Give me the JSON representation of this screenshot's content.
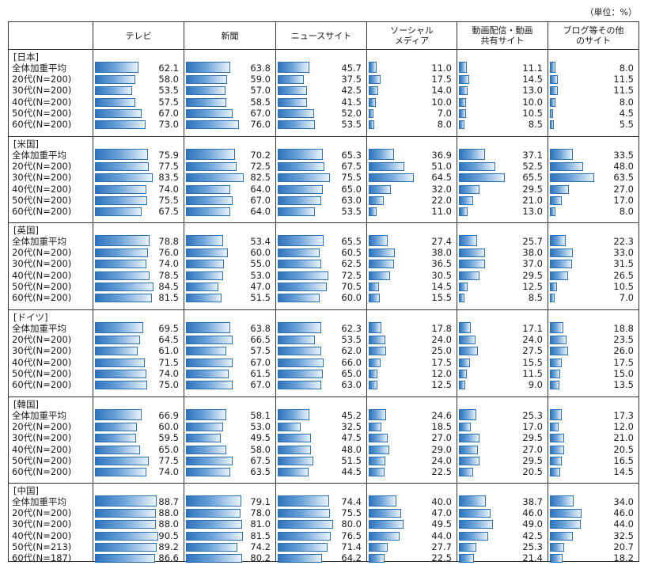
{
  "unit_label": "（単位：%）",
  "chart_data": {
    "type": "bar",
    "unit": "%",
    "columns": [
      "テレビ",
      "新聞",
      "ニュースサイト",
      "ソーシャル\nメディア",
      "動画配信・動画\n共有サイト",
      "ブログ等その他\nのサイト"
    ],
    "groups": [
      {
        "name": "[日本]",
        "rows": [
          {
            "label": "全体加重平均",
            "values": [
              62.1,
              63.8,
              45.7,
              11.0,
              11.1,
              8.0
            ]
          },
          {
            "label": "20代(N=200)",
            "values": [
              58.0,
              59.0,
              37.5,
              17.5,
              14.5,
              11.5
            ]
          },
          {
            "label": "30代(N=200)",
            "values": [
              53.5,
              57.0,
              42.5,
              14.0,
              13.0,
              11.5
            ]
          },
          {
            "label": "40代(N=200)",
            "values": [
              57.5,
              58.5,
              41.5,
              10.0,
              10.0,
              8.0
            ]
          },
          {
            "label": "50代(N=200)",
            "values": [
              67.0,
              67.0,
              52.0,
              7.0,
              10.5,
              4.5
            ]
          },
          {
            "label": "60代(N=200)",
            "values": [
              73.0,
              76.0,
              53.5,
              8.0,
              8.5,
              5.5
            ]
          }
        ]
      },
      {
        "name": "[米国]",
        "rows": [
          {
            "label": "全体加重平均",
            "values": [
              75.9,
              70.2,
              65.3,
              36.9,
              37.1,
              33.5
            ]
          },
          {
            "label": "20代(N=200)",
            "values": [
              77.5,
              72.5,
              67.5,
              51.0,
              52.5,
              48.0
            ]
          },
          {
            "label": "30代(N=200)",
            "values": [
              83.5,
              82.5,
              75.5,
              64.5,
              65.5,
              63.5
            ]
          },
          {
            "label": "40代(N=200)",
            "values": [
              74.0,
              64.0,
              65.0,
              32.0,
              29.5,
              27.0
            ]
          },
          {
            "label": "50代(N=200)",
            "values": [
              75.5,
              67.0,
              63.0,
              22.0,
              21.0,
              17.0
            ]
          },
          {
            "label": "60代(N=200)",
            "values": [
              67.5,
              64.0,
              53.5,
              11.0,
              13.0,
              8.0
            ]
          }
        ]
      },
      {
        "name": "[英国]",
        "rows": [
          {
            "label": "全体加重平均",
            "values": [
              78.8,
              53.4,
              65.5,
              27.4,
              25.7,
              22.3
            ]
          },
          {
            "label": "20代(N=200)",
            "values": [
              76.0,
              60.0,
              60.5,
              38.0,
              38.0,
              33.0
            ]
          },
          {
            "label": "30代(N=200)",
            "values": [
              74.0,
              55.0,
              62.5,
              36.5,
              37.0,
              31.5
            ]
          },
          {
            "label": "40代(N=200)",
            "values": [
              78.5,
              53.0,
              72.5,
              30.5,
              29.5,
              26.5
            ]
          },
          {
            "label": "50代(N=200)",
            "values": [
              84.5,
              47.0,
              70.5,
              14.5,
              12.5,
              10.5
            ]
          },
          {
            "label": "60代(N=200)",
            "values": [
              81.5,
              51.5,
              60.0,
              15.5,
              8.5,
              7.0
            ]
          }
        ]
      },
      {
        "name": "[ドイツ]",
        "rows": [
          {
            "label": "全体加重平均",
            "values": [
              69.5,
              63.8,
              62.3,
              17.8,
              17.1,
              18.8
            ]
          },
          {
            "label": "20代(N=200)",
            "values": [
              64.5,
              66.5,
              53.5,
              24.0,
              24.0,
              23.5
            ]
          },
          {
            "label": "30代(N=200)",
            "values": [
              61.0,
              57.5,
              62.0,
              25.0,
              27.5,
              26.0
            ]
          },
          {
            "label": "40代(N=200)",
            "values": [
              71.5,
              67.0,
              66.0,
              17.5,
              15.5,
              17.5
            ]
          },
          {
            "label": "50代(N=200)",
            "values": [
              74.0,
              61.5,
              65.0,
              12.0,
              11.5,
              15.0
            ]
          },
          {
            "label": "60代(N=200)",
            "values": [
              75.0,
              67.0,
              63.0,
              12.5,
              9.0,
              13.5
            ]
          }
        ]
      },
      {
        "name": "[韓国]",
        "rows": [
          {
            "label": "全体加重平均",
            "values": [
              66.9,
              58.1,
              45.2,
              24.6,
              25.3,
              17.3
            ]
          },
          {
            "label": "20代(N=200)",
            "values": [
              60.0,
              53.0,
              32.5,
              18.5,
              17.0,
              12.0
            ]
          },
          {
            "label": "30代(N=200)",
            "values": [
              59.5,
              49.5,
              47.5,
              27.0,
              29.5,
              21.0
            ]
          },
          {
            "label": "40代(N=200)",
            "values": [
              65.0,
              58.0,
              48.0,
              29.0,
              27.0,
              20.5
            ]
          },
          {
            "label": "50代(N=200)",
            "values": [
              77.5,
              67.5,
              51.5,
              24.0,
              29.5,
              16.5
            ]
          },
          {
            "label": "60代(N=200)",
            "values": [
              74.0,
              63.5,
              44.5,
              22.5,
              20.5,
              14.5
            ]
          }
        ]
      },
      {
        "name": "[中国]",
        "rows": [
          {
            "label": "全体加重平均",
            "values": [
              88.7,
              79.1,
              74.4,
              40.0,
              38.7,
              34.0
            ]
          },
          {
            "label": "20代(N=200)",
            "values": [
              88.0,
              78.0,
              75.5,
              47.0,
              46.0,
              46.0
            ]
          },
          {
            "label": "30代(N=200)",
            "values": [
              88.0,
              81.0,
              80.0,
              49.5,
              49.0,
              44.0
            ]
          },
          {
            "label": "40代(N=200)",
            "values": [
              90.5,
              81.5,
              76.5,
              44.0,
              42.5,
              32.5
            ]
          },
          {
            "label": "50代(N=213)",
            "values": [
              89.2,
              74.2,
              71.4,
              27.7,
              25.3,
              20.7
            ]
          },
          {
            "label": "60代(N=187)",
            "values": [
              86.6,
              80.2,
              64.2,
              22.5,
              21.4,
              18.2
            ]
          }
        ]
      }
    ]
  }
}
